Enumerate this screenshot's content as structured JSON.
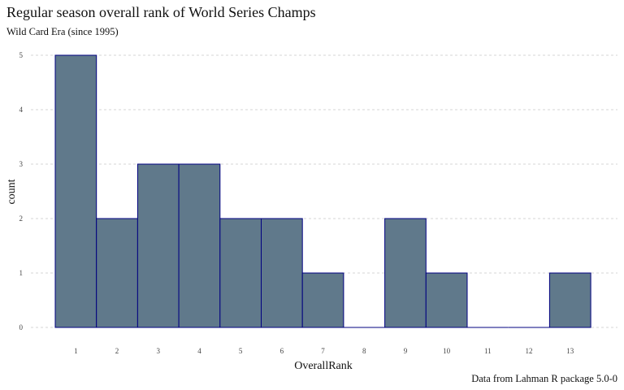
{
  "chart_data": {
    "type": "bar",
    "title": "Regular season overall rank of World Series Champs",
    "subtitle": "Wild Card Era (since 1995)",
    "caption": "Data from Lahman R package 5.0-0",
    "xlabel": "OverallRank",
    "ylabel": "count",
    "categories": [
      "1",
      "2",
      "3",
      "4",
      "5",
      "6",
      "7",
      "8",
      "9",
      "10",
      "11",
      "12",
      "13"
    ],
    "values": [
      5,
      2,
      3,
      3,
      2,
      2,
      1,
      0,
      2,
      1,
      0,
      0,
      1
    ],
    "yticks": [
      "0",
      "1",
      "2",
      "3",
      "4",
      "5"
    ],
    "ylim": [
      0,
      5
    ],
    "grid": "horizontal-dashed",
    "bar_fill": "#60798b",
    "bar_stroke": "#000080"
  }
}
